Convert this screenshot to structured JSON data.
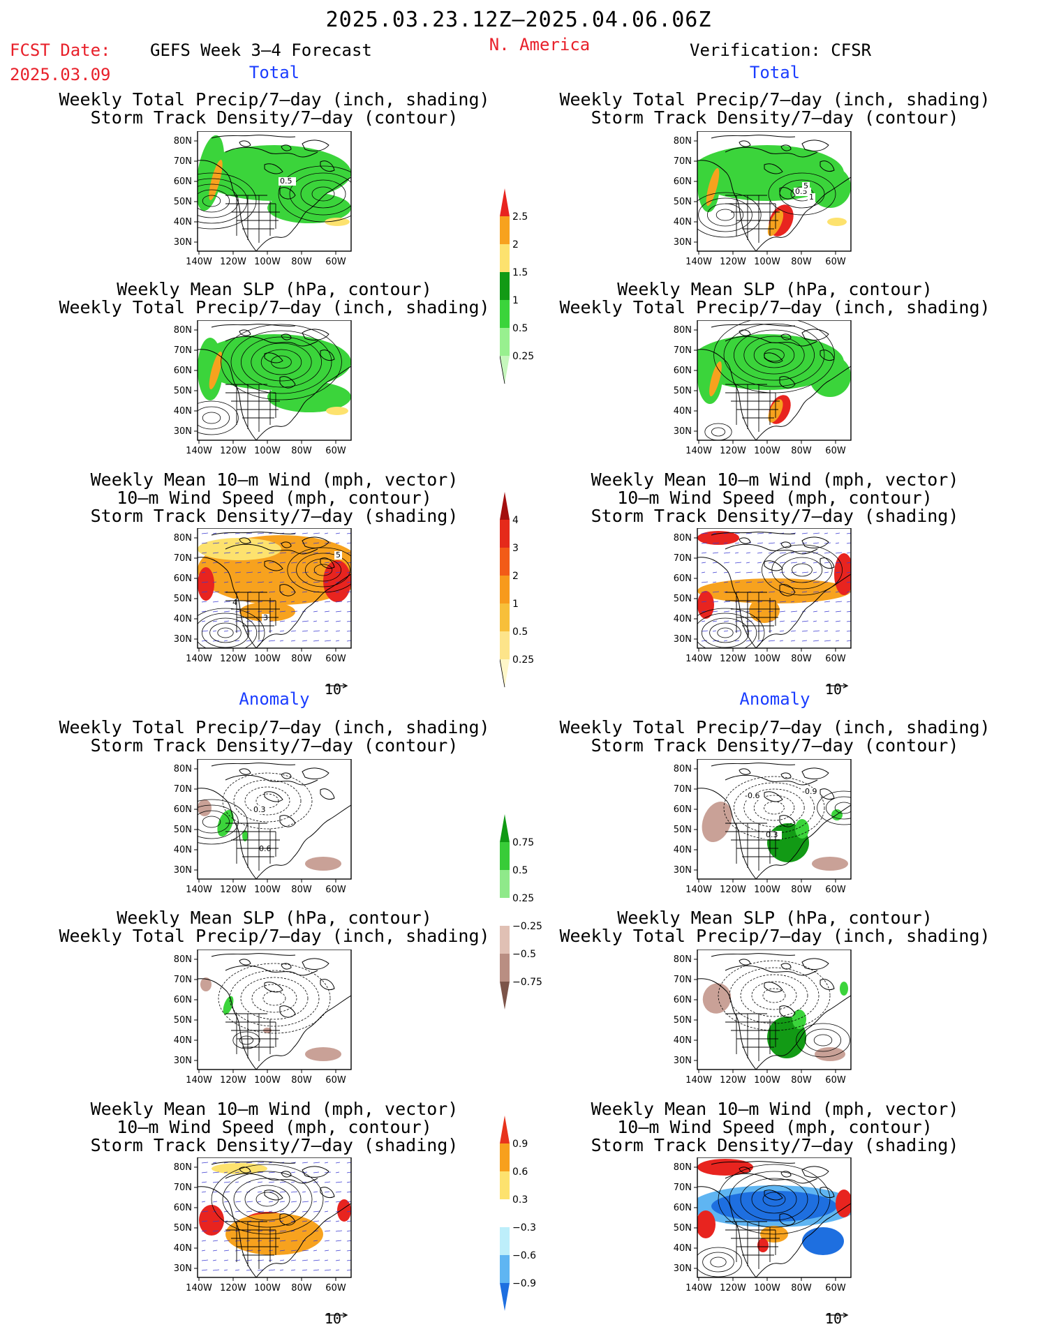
{
  "header": {
    "date_range": "2025.03.23.12Z–2025.04.06.06Z",
    "fcst_date_label": "FCST Date:",
    "fcst_date": "2025.03.09",
    "model_title": "GEFS Week 3–4 Forecast",
    "region": "N. America",
    "verification": "Verification: CFSR"
  },
  "sections": {
    "total": "Total",
    "anomaly": "Anomaly"
  },
  "panel_titles": {
    "precip_storm": [
      "Weekly Total Precip/7–day (inch, shading)",
      "Storm Track Density/7–day (contour)"
    ],
    "slp_precip": [
      "Weekly Mean SLP (hPa, contour)",
      "Weekly Total Precip/7–day (inch, shading)"
    ],
    "wind_storm": [
      "Weekly Mean 10–m Wind (mph, vector)",
      "10–m Wind Speed (mph, contour)",
      "Storm Track Density/7–day (shading)"
    ]
  },
  "axes": {
    "lat_labels": [
      "80N",
      "70N",
      "60N",
      "50N",
      "40N",
      "30N"
    ],
    "lon_labels": [
      "140W",
      "120W",
      "100W",
      "80W",
      "60W"
    ]
  },
  "vector_ref": "10",
  "colorbars": {
    "precip_total": {
      "labels": [
        "2.5",
        "2",
        "1.5",
        "1",
        "0.5",
        "0.25"
      ],
      "colors": [
        "#e8241f",
        "#f7a21e",
        "#fde26e",
        "#129a15",
        "#3bd43b",
        "#98f08f",
        "#c6f7bd"
      ]
    },
    "storm_total": {
      "labels": [
        "4",
        "3",
        "2",
        "1",
        "0.5",
        "0.25"
      ],
      "colors": [
        "#a30f0f",
        "#e52a1a",
        "#f25b17",
        "#f79a1c",
        "#f7bf3a",
        "#fde48a",
        "#fff7c9"
      ]
    },
    "precip_anom": {
      "labels": [
        "0.75",
        "0.5",
        "0.25",
        "−0.25",
        "−0.5",
        "−0.75"
      ],
      "colors": [
        "#109a14",
        "#38cc38",
        "#8fe98a",
        "#ffffff",
        "#e0c0b4",
        "#b98e82",
        "#7c5449"
      ]
    },
    "storm_anom": {
      "labels": [
        "0.9",
        "0.6",
        "0.3",
        "−0.3",
        "−0.6",
        "−0.9"
      ],
      "colors": [
        "#e8331c",
        "#f7a01d",
        "#fde26e",
        "#ffffff",
        "#bdeefa",
        "#5fb5f2",
        "#1e6fe0"
      ]
    },
    "units_note": "map shading colours per panel type",
    "map_shade_colors": {
      "green": "#3bd43b",
      "darkgreen": "#129a15",
      "orange": "#f7a21e",
      "red": "#e8241f",
      "brown": "#c9a197",
      "blue": "#5fb5f2",
      "darkblue": "#1e6fe0",
      "yellow": "#fde26e"
    }
  },
  "contour_labels": {
    "fc_precip_total": "0.5",
    "ver_precip_total": [
      "0.5",
      "5",
      "1"
    ],
    "fc_storm_total": [
      "5",
      "4",
      "3"
    ],
    "fc_precip_anom": [
      "0.3",
      "0.6"
    ],
    "ver_precip_anom": [
      "-0.6",
      "-0.9",
      "0.3"
    ]
  }
}
